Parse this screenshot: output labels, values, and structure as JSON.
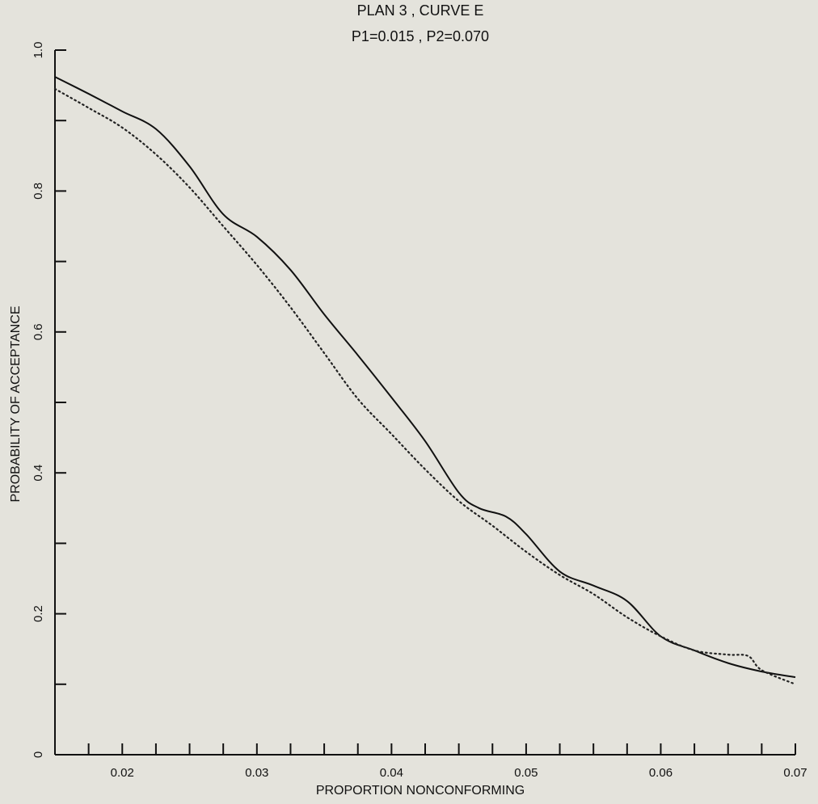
{
  "chart_data": {
    "type": "line",
    "title": "PLAN 3 , CURVE E",
    "subtitle": "P1=0.015 , P2=0.070",
    "xlabel": "PROPORTION NONCONFORMING",
    "ylabel": "PROBABILITY OF ACCEPTANCE",
    "xlim": [
      0.015,
      0.07
    ],
    "ylim": [
      0,
      1.0
    ],
    "x_ticks": [
      0.02,
      0.03,
      0.04,
      0.05,
      0.06,
      0.07
    ],
    "x_tick_labels": [
      "0.02",
      "0.03",
      "0.04",
      "0.05",
      "0.06",
      "0.07"
    ],
    "y_ticks": [
      0,
      0.2,
      0.4,
      0.6,
      0.8,
      1.0
    ],
    "y_tick_labels": [
      "0",
      "0.2",
      "0.4",
      "0.6",
      "0.8",
      "1.0"
    ],
    "grid": false,
    "series": [
      {
        "style": "solid",
        "x": [
          0.015,
          0.0175,
          0.02,
          0.0225,
          0.025,
          0.0275,
          0.03,
          0.0325,
          0.035,
          0.0375,
          0.04,
          0.0425,
          0.045,
          0.0465,
          0.0485,
          0.05,
          0.0525,
          0.055,
          0.0575,
          0.06,
          0.0625,
          0.065,
          0.0675,
          0.07
        ],
        "y": [
          0.962,
          0.938,
          0.913,
          0.888,
          0.835,
          0.767,
          0.735,
          0.688,
          0.625,
          0.567,
          0.507,
          0.445,
          0.372,
          0.35,
          0.338,
          0.313,
          0.26,
          0.24,
          0.218,
          0.168,
          0.148,
          0.13,
          0.118,
          0.11
        ]
      },
      {
        "style": "dotted",
        "x": [
          0.015,
          0.0175,
          0.02,
          0.0225,
          0.025,
          0.0275,
          0.03,
          0.0325,
          0.035,
          0.0375,
          0.04,
          0.0425,
          0.045,
          0.0475,
          0.05,
          0.0525,
          0.055,
          0.0575,
          0.06,
          0.0625,
          0.065,
          0.0665,
          0.0675,
          0.07
        ],
        "y": [
          0.945,
          0.918,
          0.89,
          0.852,
          0.805,
          0.75,
          0.695,
          0.635,
          0.57,
          0.505,
          0.455,
          0.405,
          0.36,
          0.325,
          0.288,
          0.255,
          0.228,
          0.195,
          0.168,
          0.148,
          0.142,
          0.14,
          0.12,
          0.1
        ]
      }
    ]
  }
}
